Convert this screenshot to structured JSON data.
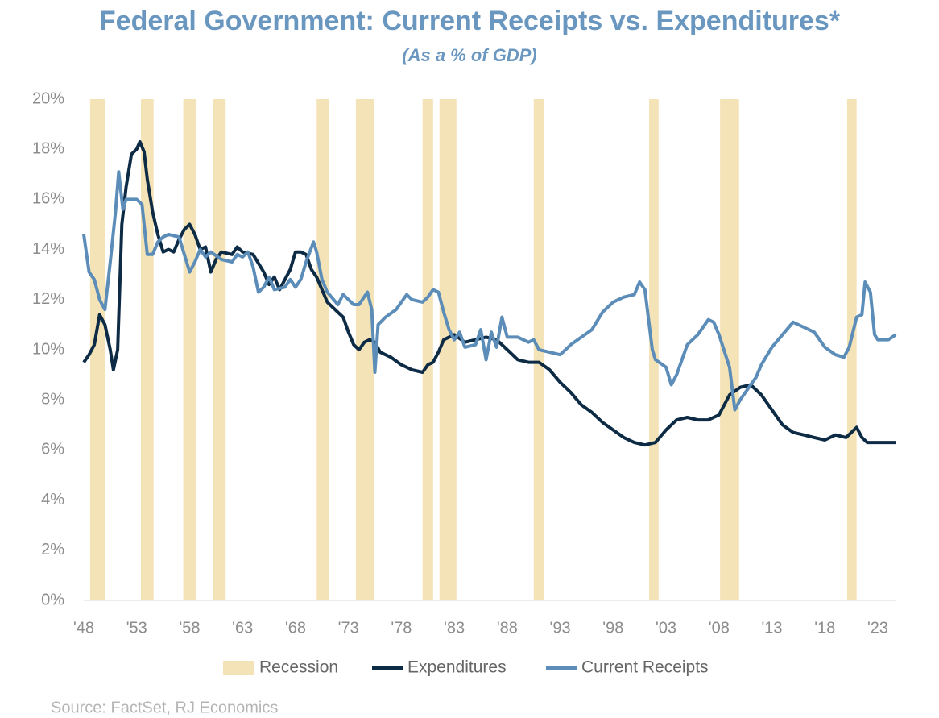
{
  "chart_data": {
    "type": "line",
    "title": "Federal Government: Current Receipts vs. Expenditures*",
    "subtitle": "(As a % of GDP)",
    "source": "Source: FactSet, RJ Economics",
    "xlim": [
      1948,
      2024.75
    ],
    "xticks": [
      {
        "value": 1948,
        "label": "'48"
      },
      {
        "value": 1953,
        "label": "'53"
      },
      {
        "value": 1958,
        "label": "'58"
      },
      {
        "value": 1963,
        "label": "'63"
      },
      {
        "value": 1968,
        "label": "'68"
      },
      {
        "value": 1973,
        "label": "'73"
      },
      {
        "value": 1978,
        "label": "'78"
      },
      {
        "value": 1983,
        "label": "'83"
      },
      {
        "value": 1988,
        "label": "'88"
      },
      {
        "value": 1993,
        "label": "'93"
      },
      {
        "value": 1998,
        "label": "'98"
      },
      {
        "value": 2003,
        "label": "'03"
      },
      {
        "value": 2008,
        "label": "'08"
      },
      {
        "value": 2013,
        "label": "'13"
      },
      {
        "value": 2018,
        "label": "'18"
      },
      {
        "value": 2023,
        "label": "'23"
      }
    ],
    "ylim": [
      0,
      20
    ],
    "yticks": [
      {
        "value": 0,
        "label": "0%"
      },
      {
        "value": 2,
        "label": "2%"
      },
      {
        "value": 4,
        "label": "4%"
      },
      {
        "value": 6,
        "label": "6%"
      },
      {
        "value": 8,
        "label": "8%"
      },
      {
        "value": 10,
        "label": "10%"
      },
      {
        "value": 12,
        "label": "12%"
      },
      {
        "value": 14,
        "label": "14%"
      },
      {
        "value": 16,
        "label": "16%"
      },
      {
        "value": 18,
        "label": "18%"
      },
      {
        "value": 20,
        "label": "20%"
      }
    ],
    "recessions": {
      "name": "Recession",
      "color": "#f5e3b8",
      "periods": [
        [
          1948.6,
          1950.05
        ],
        [
          1953.4,
          1954.6
        ],
        [
          1957.4,
          1958.65
        ],
        [
          1960.2,
          1961.4
        ],
        [
          1970.0,
          1971.2
        ],
        [
          1973.7,
          1975.4
        ],
        [
          1980.0,
          1981.0
        ],
        [
          1981.6,
          1983.2
        ],
        [
          1990.5,
          1991.5
        ],
        [
          2001.4,
          2002.3
        ],
        [
          2008.1,
          2009.9
        ],
        [
          2020.1,
          2021.0
        ]
      ]
    },
    "series": [
      {
        "name": "Expenditures",
        "color": "#0d2b45",
        "x": [
          1948,
          1948.5,
          1949,
          1949.5,
          1950,
          1950.5,
          1950.8,
          1951.2,
          1951.6,
          1952,
          1952.5,
          1953,
          1953.3,
          1953.7,
          1954,
          1954.5,
          1955,
          1955.5,
          1956,
          1956.5,
          1957,
          1957.5,
          1958,
          1958.5,
          1959,
          1959.5,
          1960,
          1960.5,
          1961,
          1962,
          1962.5,
          1963,
          1964,
          1965,
          1965.5,
          1966,
          1966.5,
          1967,
          1967.5,
          1968,
          1968.5,
          1969,
          1969.5,
          1970,
          1970.5,
          1971,
          1972,
          1972.5,
          1973,
          1973.5,
          1974,
          1974.5,
          1975,
          1975.5,
          1976,
          1977,
          1978,
          1979,
          1980,
          1980.5,
          1981,
          1981.5,
          1982,
          1982.5,
          1983,
          1984,
          1985,
          1986,
          1987,
          1988,
          1989,
          1990,
          1991,
          1992,
          1993,
          1994,
          1995,
          1996,
          1997,
          1998,
          1999,
          2000,
          2001,
          2002,
          2003,
          2004,
          2005,
          2006,
          2007,
          2008,
          2009,
          2010,
          2011,
          2012,
          2013,
          2014,
          2015,
          2016,
          2017,
          2018,
          2019,
          2020,
          2021,
          2021.5,
          2022,
          2023,
          2024,
          2024.7
        ],
        "values": [
          9.5,
          9.8,
          10.2,
          11.4,
          11.0,
          10.0,
          9.2,
          10.0,
          15.0,
          16.5,
          17.8,
          18.0,
          18.3,
          17.9,
          16.8,
          15.5,
          14.6,
          13.9,
          14.0,
          13.9,
          14.4,
          14.8,
          15.0,
          14.6,
          14.0,
          14.1,
          13.1,
          13.6,
          13.9,
          13.8,
          14.1,
          13.9,
          13.8,
          13.1,
          12.6,
          12.9,
          12.4,
          12.8,
          13.2,
          13.9,
          13.9,
          13.8,
          13.2,
          12.9,
          12.4,
          11.9,
          11.5,
          11.3,
          10.7,
          10.2,
          10.0,
          10.3,
          10.4,
          10.3,
          9.9,
          9.7,
          9.4,
          9.2,
          9.1,
          9.4,
          9.5,
          9.9,
          10.4,
          10.5,
          10.6,
          10.3,
          10.4,
          10.5,
          10.4,
          10.0,
          9.6,
          9.5,
          9.5,
          9.2,
          8.7,
          8.3,
          7.8,
          7.5,
          7.1,
          6.8,
          6.5,
          6.3,
          6.2,
          6.3,
          6.8,
          7.2,
          7.3,
          7.2,
          7.2,
          7.4,
          8.2,
          8.5,
          8.6,
          8.2,
          7.6,
          7.0,
          6.7,
          6.6,
          6.5,
          6.4,
          6.6,
          6.5,
          6.9,
          6.5,
          6.3,
          6.3,
          6.3,
          6.3
        ]
      },
      {
        "name": "Current Receipts",
        "color": "#5b8db8",
        "x": [
          1948,
          1948.5,
          1949,
          1949.5,
          1950,
          1950.5,
          1951,
          1951.3,
          1951.7,
          1952,
          1952.5,
          1953,
          1953.5,
          1954,
          1954.5,
          1955,
          1955.5,
          1956,
          1957,
          1957.5,
          1958,
          1958.5,
          1959,
          1959.5,
          1960,
          1961,
          1962,
          1962.5,
          1963,
          1963.5,
          1964,
          1964.5,
          1965,
          1965.5,
          1966,
          1967,
          1967.5,
          1968,
          1968.5,
          1969,
          1969.7,
          1970,
          1970.5,
          1971,
          1972,
          1972.5,
          1973,
          1973.5,
          1974,
          1974.8,
          1975.2,
          1975.5,
          1975.8,
          1976.5,
          1977.5,
          1978.5,
          1979,
          1980,
          1980.5,
          1981,
          1981.5,
          1982,
          1982.5,
          1983,
          1983.5,
          1984,
          1985,
          1985.5,
          1986,
          1986.5,
          1987,
          1987.5,
          1988,
          1989,
          1990,
          1990.5,
          1991,
          1992,
          1993,
          1994,
          1995,
          1996,
          1997,
          1998,
          1999,
          2000,
          2000.5,
          2001,
          2001.7,
          2002,
          2003,
          2003.5,
          2004,
          2005,
          2006,
          2007,
          2007.5,
          2008,
          2009,
          2009.5,
          2010,
          2011,
          2011.5,
          2012,
          2013,
          2014,
          2015,
          2016,
          2017,
          2018,
          2019,
          2019.8,
          2020.3,
          2021,
          2021.5,
          2021.8,
          2022.3,
          2022.7,
          2023,
          2024,
          2024.7
        ],
        "values": [
          14.6,
          13.1,
          12.8,
          12.0,
          11.6,
          13.5,
          15.5,
          17.1,
          15.6,
          16.0,
          16.0,
          16.0,
          15.8,
          13.8,
          13.8,
          14.3,
          14.5,
          14.6,
          14.5,
          13.8,
          13.1,
          13.5,
          14.0,
          13.7,
          13.9,
          13.6,
          13.5,
          13.8,
          13.7,
          13.9,
          13.3,
          12.3,
          12.5,
          12.9,
          12.4,
          12.5,
          12.8,
          12.5,
          12.8,
          13.5,
          14.3,
          13.9,
          12.8,
          12.3,
          11.8,
          12.2,
          12.0,
          11.8,
          11.8,
          12.3,
          11.6,
          9.1,
          11.0,
          11.3,
          11.6,
          12.2,
          12.0,
          11.9,
          12.1,
          12.4,
          12.3,
          11.5,
          10.8,
          10.4,
          10.7,
          10.1,
          10.2,
          10.8,
          9.6,
          10.7,
          10.1,
          11.3,
          10.5,
          10.5,
          10.3,
          10.4,
          10.0,
          9.9,
          9.8,
          10.2,
          10.5,
          10.8,
          11.5,
          11.9,
          12.1,
          12.2,
          12.7,
          12.4,
          10.0,
          9.6,
          9.3,
          8.6,
          9.0,
          10.2,
          10.6,
          11.2,
          11.1,
          10.6,
          9.3,
          7.6,
          8.0,
          8.6,
          8.9,
          9.4,
          10.1,
          10.6,
          11.1,
          10.9,
          10.7,
          10.1,
          9.8,
          9.7,
          10.1,
          11.3,
          11.4,
          12.7,
          12.3,
          10.6,
          10.4,
          10.4,
          10.6
        ]
      }
    ]
  }
}
